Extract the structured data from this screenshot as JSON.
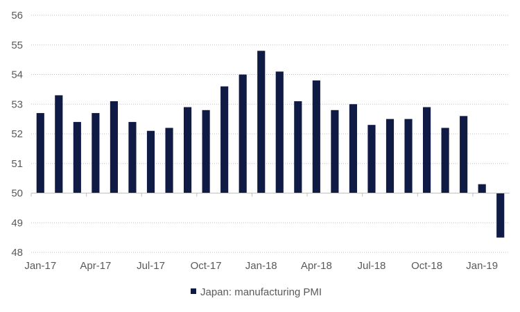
{
  "chart_data": {
    "type": "bar",
    "title": "",
    "xlabel": "",
    "ylabel": "",
    "ylim": [
      48,
      56
    ],
    "baseline": 50,
    "yticks": [
      48,
      49,
      50,
      51,
      52,
      53,
      54,
      55,
      56
    ],
    "grid": "horizontal",
    "legend_position": "bottom",
    "bar_color": "#0f1a45",
    "categories": [
      "Jan-17",
      "Feb-17",
      "Mar-17",
      "Apr-17",
      "May-17",
      "Jun-17",
      "Jul-17",
      "Aug-17",
      "Sep-17",
      "Oct-17",
      "Nov-17",
      "Dec-17",
      "Jan-18",
      "Feb-18",
      "Mar-18",
      "Apr-18",
      "May-18",
      "Jun-18",
      "Jul-18",
      "Aug-18",
      "Sep-18",
      "Oct-18",
      "Nov-18",
      "Dec-18",
      "Jan-19",
      "Feb-19"
    ],
    "xtick_labels": [
      "Jan-17",
      "Apr-17",
      "Jul-17",
      "Oct-17",
      "Jan-18",
      "Apr-18",
      "Jul-18",
      "Oct-18",
      "Jan-19"
    ],
    "series": [
      {
        "name": "Japan: manufacturing PMI",
        "values": [
          52.7,
          53.3,
          52.4,
          52.7,
          53.1,
          52.4,
          52.1,
          52.2,
          52.9,
          52.8,
          53.6,
          54.0,
          54.8,
          54.1,
          53.1,
          53.8,
          52.8,
          53.0,
          52.3,
          52.5,
          52.5,
          52.9,
          52.2,
          52.6,
          50.3,
          48.5
        ]
      }
    ]
  }
}
